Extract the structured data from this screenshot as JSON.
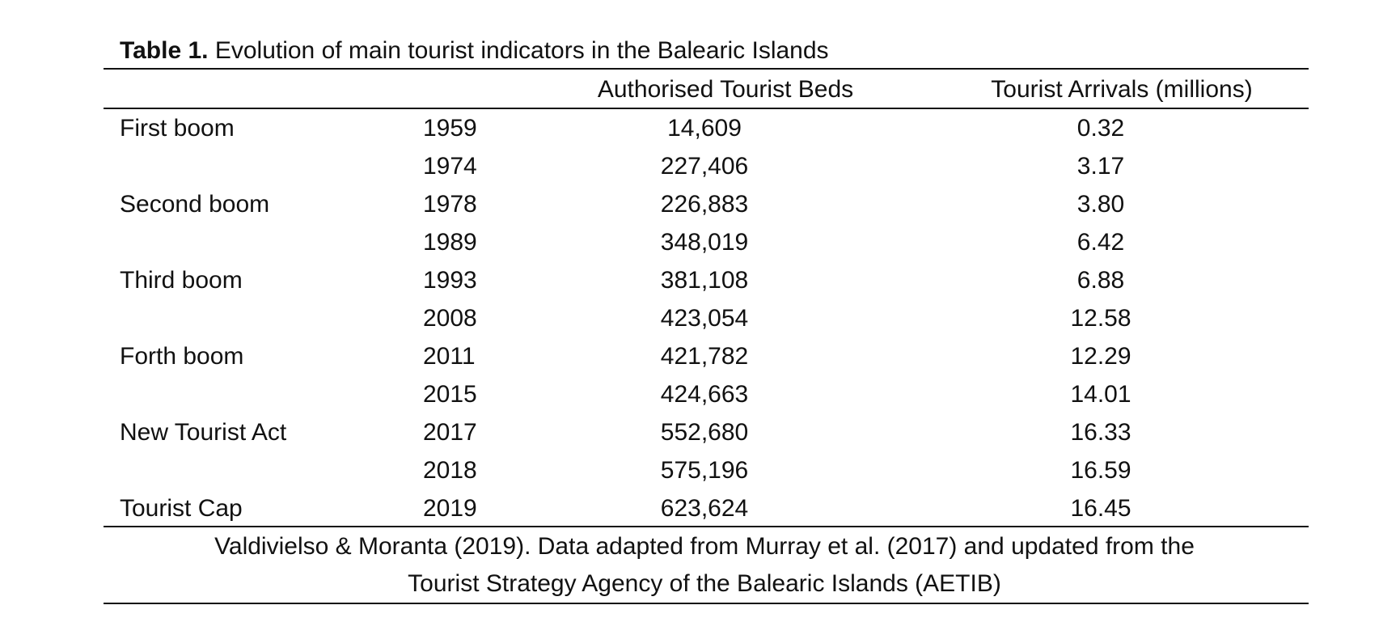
{
  "title": {
    "label": "Table 1.",
    "text": "Evolution of main tourist indicators in the Balearic Islands"
  },
  "table": {
    "header": {
      "beds": "Authorised Tourist Beds",
      "arrivals": "Tourist Arrivals (millions)"
    },
    "rows": [
      [
        "First boom",
        "1959",
        "14,609",
        "0.32"
      ],
      [
        null,
        "1974",
        "227,406",
        "3.17"
      ],
      [
        "Second boom",
        "1978",
        "226,883",
        "3.80"
      ],
      [
        null,
        "1989",
        "348,019",
        "6.42"
      ],
      [
        "Third boom",
        "1993",
        "381,108",
        "6.88"
      ],
      [
        null,
        "2008",
        "423,054",
        "12.58"
      ],
      [
        "Forth boom",
        "2011",
        "421,782",
        "12.29"
      ],
      [
        null,
        "2015",
        "424,663",
        "14.01"
      ],
      [
        "New Tourist Act",
        "2017",
        "552,680",
        "16.33"
      ],
      [
        null,
        "2018",
        "575,196",
        "16.59"
      ],
      [
        "Tourist Cap",
        "2019",
        "623,624",
        "16.45"
      ]
    ]
  },
  "source": [
    "Valdivielso & Moranta (2019). Data adapted from Murray et al. (2017) and updated from the",
    "Tourist Strategy Agency of the Balearic Islands (AETIB)"
  ]
}
